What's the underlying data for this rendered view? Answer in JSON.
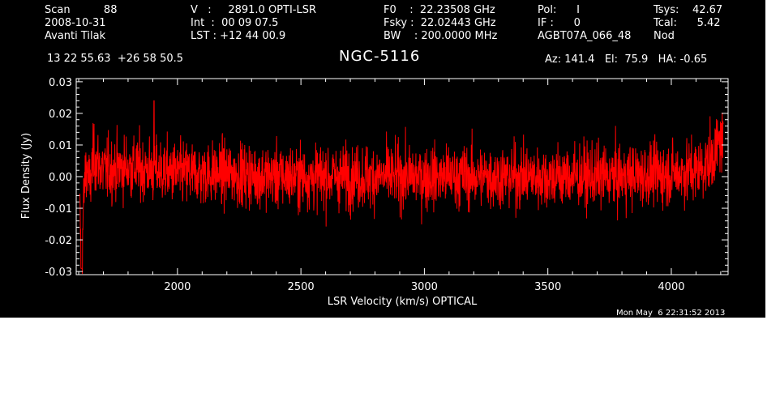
{
  "header": {
    "col1": [
      "Scan          88",
      "2008-10-31",
      "Avanti Tilak"
    ],
    "col2": [
      "V   :     2891.0 OPTI-LSR",
      "Int  :  00 09 07.5",
      "LST : +12 44 00.9"
    ],
    "col3": [
      "F0    :  22.23508 GHz",
      "Fsky :  22.02443 GHz",
      "BW    : 200.0000 MHz"
    ],
    "col4": [
      "Pol:      I",
      "IF :      0",
      "AGBT07A_066_48"
    ],
    "col5": [
      "Tsys:    42.67",
      "Tcal:      5.42",
      "Nod"
    ],
    "coords": "13 22 55.63  +26 58 50.5",
    "source": "NGC-5116",
    "azel": "Az: 141.4   El:  75.9   HA: -0.65"
  },
  "timestamp": "Mon May  6 22:31:52 2013",
  "colors": {
    "background": "#000000",
    "axes": "#ffffff",
    "series": "#ff0000"
  },
  "chart_data": {
    "type": "line",
    "title": "NGC-5116",
    "xlabel": "LSR Velocity (km/s) OPTICAL",
    "ylabel": "Flux Density (Jy)",
    "xlim": [
      1590,
      4230
    ],
    "ylim": [
      -0.031,
      0.031
    ],
    "xticks": [
      2000,
      2500,
      3000,
      3500,
      4000
    ],
    "yticks": [
      -0.03,
      -0.02,
      -0.01,
      0.0,
      0.01,
      0.02,
      0.03
    ],
    "ytick_labels": [
      "-0.03",
      "-0.02",
      "-0.01",
      "0.00",
      "0.01",
      "0.02",
      "0.03"
    ],
    "grid": false,
    "series": [
      {
        "x_start": 1605,
        "x_end": 4210,
        "x": [
          1605,
          1612,
          1620,
          1630,
          1645,
          1660,
          1700,
          1800,
          1900,
          2000,
          2200,
          2400,
          2600,
          2800,
          3000,
          3200,
          3400,
          3600,
          3800,
          4000,
          4100,
          4150,
          4180,
          4200,
          4210
        ],
        "y": [
          -0.012,
          -0.029,
          -0.008,
          0.004,
          -0.003,
          0.006,
          0.002,
          0.003,
          0.002,
          0.001,
          0.001,
          0.0,
          0.0,
          0.0,
          0.0,
          0.0,
          0.0,
          0.0,
          0.0,
          0.001,
          0.002,
          0.004,
          0.008,
          0.012,
          0.01
        ],
        "noise_rms": 0.005,
        "min": -0.029,
        "max": 0.024,
        "max_at": 1905
      }
    ]
  }
}
